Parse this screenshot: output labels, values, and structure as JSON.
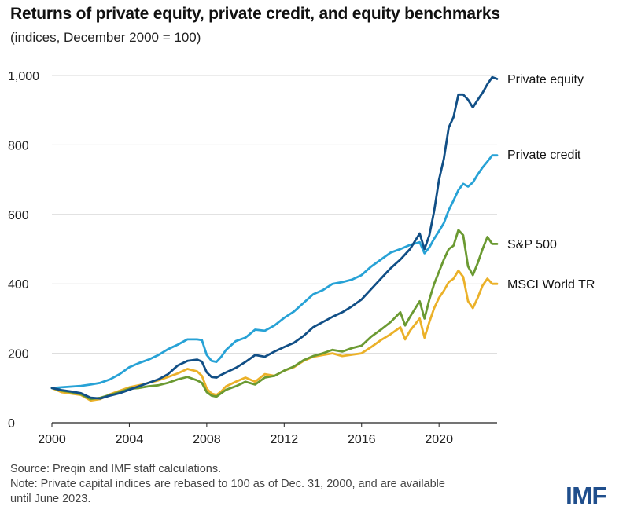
{
  "chart_data": {
    "type": "line",
    "title": "Returns of private equity, private credit, and equity benchmarks",
    "subtitle": "(indices, December 2000 = 100)",
    "xlabel": "",
    "ylabel": "",
    "xlim": [
      2000,
      2023
    ],
    "ylim": [
      0,
      1000
    ],
    "x_ticks": [
      2000,
      2004,
      2008,
      2012,
      2016,
      2020
    ],
    "x_tick_labels": [
      "2000",
      "2004",
      "2008",
      "2012",
      "2016",
      "2020"
    ],
    "y_ticks": [
      0,
      200,
      400,
      600,
      800,
      1000
    ],
    "y_tick_labels": [
      "0",
      "200",
      "400",
      "600",
      "800",
      "1,000"
    ],
    "grid": true,
    "legend": "direct labels at right end of lines",
    "series": [
      {
        "name": "Private equity",
        "label": "Private equity",
        "color": "#114f86",
        "x": [
          2000,
          2000.5,
          2001,
          2001.5,
          2002,
          2002.5,
          2003,
          2003.5,
          2004,
          2004.5,
          2005,
          2005.5,
          2006,
          2006.5,
          2007,
          2007.5,
          2007.75,
          2008,
          2008.25,
          2008.5,
          2008.75,
          2009,
          2009.5,
          2010,
          2010.5,
          2011,
          2011.5,
          2012,
          2012.5,
          2013,
          2013.5,
          2014,
          2014.5,
          2015,
          2015.5,
          2016,
          2016.5,
          2017,
          2017.5,
          2018,
          2018.5,
          2019,
          2019.25,
          2019.5,
          2019.75,
          2020,
          2020.25,
          2020.5,
          2020.75,
          2021,
          2021.25,
          2021.5,
          2021.75,
          2022,
          2022.25,
          2022.5,
          2022.75,
          2023
        ],
        "values": [
          100,
          94,
          90,
          85,
          72,
          70,
          78,
          85,
          95,
          105,
          115,
          125,
          140,
          165,
          178,
          182,
          176,
          145,
          132,
          130,
          138,
          145,
          158,
          175,
          195,
          190,
          205,
          218,
          230,
          250,
          275,
          290,
          305,
          318,
          335,
          355,
          385,
          415,
          445,
          470,
          500,
          545,
          500,
          540,
          610,
          700,
          760,
          850,
          880,
          945,
          945,
          930,
          908,
          930,
          950,
          975,
          995,
          990
        ]
      },
      {
        "name": "Private credit",
        "label": "Private credit",
        "color": "#27a2d6",
        "x": [
          2000,
          2000.5,
          2001,
          2001.5,
          2002,
          2002.5,
          2003,
          2003.5,
          2004,
          2004.5,
          2005,
          2005.5,
          2006,
          2006.5,
          2007,
          2007.5,
          2007.75,
          2008,
          2008.25,
          2008.5,
          2008.75,
          2009,
          2009.5,
          2010,
          2010.5,
          2011,
          2011.5,
          2012,
          2012.5,
          2013,
          2013.5,
          2014,
          2014.5,
          2015,
          2015.5,
          2016,
          2016.5,
          2017,
          2017.5,
          2018,
          2018.5,
          2019,
          2019.25,
          2019.5,
          2019.75,
          2020,
          2020.25,
          2020.5,
          2020.75,
          2021,
          2021.25,
          2021.5,
          2021.75,
          2022,
          2022.25,
          2022.5,
          2022.75,
          2023
        ],
        "values": [
          100,
          102,
          104,
          106,
          110,
          115,
          125,
          140,
          160,
          172,
          182,
          195,
          212,
          225,
          240,
          240,
          238,
          195,
          178,
          175,
          190,
          210,
          235,
          245,
          268,
          265,
          280,
          302,
          320,
          345,
          370,
          382,
          400,
          405,
          412,
          425,
          450,
          470,
          490,
          500,
          512,
          520,
          488,
          505,
          530,
          552,
          575,
          612,
          640,
          670,
          688,
          680,
          692,
          715,
          735,
          752,
          770,
          770
        ]
      },
      {
        "name": "S&P 500",
        "label": "S&P 500",
        "color": "#6b9a32",
        "x": [
          2000,
          2000.5,
          2001,
          2001.5,
          2002,
          2002.5,
          2003,
          2003.5,
          2004,
          2004.5,
          2005,
          2005.5,
          2006,
          2006.5,
          2007,
          2007.5,
          2007.75,
          2008,
          2008.25,
          2008.5,
          2008.75,
          2009,
          2009.5,
          2010,
          2010.5,
          2011,
          2011.5,
          2012,
          2012.5,
          2013,
          2013.5,
          2014,
          2014.5,
          2015,
          2015.5,
          2016,
          2016.5,
          2017,
          2017.5,
          2018,
          2018.25,
          2018.5,
          2019,
          2019.25,
          2019.5,
          2019.75,
          2020,
          2020.25,
          2020.5,
          2020.75,
          2021,
          2021.25,
          2021.5,
          2021.75,
          2022,
          2022.25,
          2022.5,
          2022.75,
          2023
        ],
        "values": [
          100,
          92,
          88,
          82,
          68,
          72,
          80,
          88,
          98,
          100,
          105,
          108,
          115,
          125,
          132,
          122,
          115,
          88,
          78,
          75,
          85,
          95,
          105,
          118,
          110,
          130,
          135,
          150,
          162,
          180,
          192,
          200,
          210,
          205,
          215,
          222,
          248,
          268,
          290,
          318,
          280,
          305,
          350,
          300,
          355,
          400,
          435,
          470,
          500,
          510,
          555,
          540,
          450,
          425,
          460,
          500,
          535,
          515,
          515
        ]
      },
      {
        "name": "MSCI World TR",
        "label": "MSCI World TR",
        "color": "#ebb129",
        "x": [
          2000,
          2000.5,
          2001,
          2001.5,
          2002,
          2002.5,
          2003,
          2003.5,
          2004,
          2004.5,
          2005,
          2005.5,
          2006,
          2006.5,
          2007,
          2007.5,
          2007.75,
          2008,
          2008.25,
          2008.5,
          2008.75,
          2009,
          2009.5,
          2010,
          2010.5,
          2011,
          2011.5,
          2012,
          2012.5,
          2013,
          2013.5,
          2014,
          2014.5,
          2015,
          2015.5,
          2016,
          2016.5,
          2017,
          2017.5,
          2018,
          2018.25,
          2018.5,
          2019,
          2019.25,
          2019.5,
          2019.75,
          2020,
          2020.25,
          2020.5,
          2020.75,
          2021,
          2021.25,
          2021.5,
          2021.75,
          2022,
          2022.25,
          2022.5,
          2022.75,
          2023
        ],
        "values": [
          100,
          88,
          84,
          80,
          64,
          68,
          82,
          92,
          102,
          108,
          115,
          122,
          132,
          142,
          155,
          148,
          135,
          98,
          84,
          80,
          90,
          105,
          118,
          130,
          118,
          140,
          135,
          150,
          160,
          178,
          190,
          195,
          200,
          192,
          196,
          200,
          218,
          238,
          255,
          275,
          240,
          265,
          300,
          245,
          290,
          330,
          360,
          380,
          405,
          415,
          438,
          420,
          350,
          330,
          360,
          395,
          415,
          400,
          400
        ]
      }
    ]
  },
  "footer": {
    "source": "Source: Preqin and IMF staff calculations.",
    "note_line1": "Note: Private capital indices are rebased to 100 as of Dec. 31, 2000, and are available",
    "note_line2": "until June 2023."
  },
  "logo": "IMF"
}
